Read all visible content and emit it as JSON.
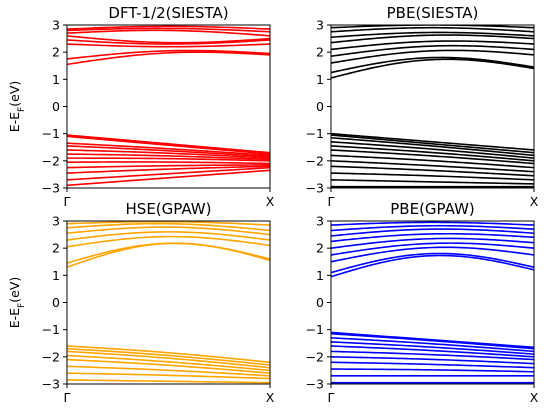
{
  "chart_data": [
    {
      "type": "line",
      "title": "DFT-1/2(SIESTA)",
      "ylabel": "E-E_F(eV)",
      "ylabel_main": "E-E",
      "ylabel_sub": "F",
      "ylabel_tail": "(eV)",
      "xticks": [
        "Γ",
        "X"
      ],
      "yticks": [
        "3",
        "2",
        "1",
        "0",
        "−1",
        "−2",
        "−3"
      ],
      "ylim": [
        -3,
        3
      ],
      "xlim": [
        0,
        1
      ],
      "color": "#ff0000",
      "conduction_bands": {
        "start": [
          1.55,
          1.75,
          2.3,
          2.45,
          2.6,
          2.7,
          2.8,
          2.85
        ],
        "end": [
          1.9,
          1.95,
          2.3,
          2.45,
          2.5,
          2.6,
          2.75,
          2.85
        ],
        "amplitude": [
          0.25,
          0.2,
          -0.1,
          -0.15,
          -0.2,
          0.15,
          0.1,
          0.1
        ]
      },
      "valence_bands": {
        "start": [
          -1.05,
          -1.1,
          -1.35,
          -1.45,
          -1.6,
          -1.75,
          -1.9,
          -2.05,
          -2.25,
          -2.45,
          -2.7,
          -2.9
        ],
        "end": [
          -1.7,
          -1.75,
          -1.8,
          -1.85,
          -1.9,
          -1.95,
          -2.0,
          -2.1,
          -2.15,
          -2.2,
          -2.25,
          -2.35
        ],
        "amplitude": [
          0.0,
          0.0,
          0.02,
          0.02,
          0.03,
          0.03,
          0.03,
          0.03,
          0.02,
          0.02,
          0.0,
          0.0
        ]
      }
    },
    {
      "type": "line",
      "title": "PBE(SIESTA)",
      "ylabel": "",
      "xticks": [
        "Γ",
        "X"
      ],
      "yticks": [
        "3",
        "2",
        "1",
        "0",
        "−1",
        "−2",
        "−3"
      ],
      "ylim": [
        -3,
        3
      ],
      "xlim": [
        0,
        1
      ],
      "color": "#000000",
      "conduction_bands": {
        "start": [
          1.05,
          1.25,
          1.6,
          1.85,
          2.1,
          2.35,
          2.55,
          2.75,
          2.9
        ],
        "end": [
          1.4,
          1.45,
          1.9,
          2.1,
          2.3,
          2.5,
          2.6,
          2.75,
          2.9
        ],
        "amplitude": [
          0.5,
          0.45,
          0.3,
          0.25,
          0.2,
          0.2,
          0.15,
          0.15,
          0.1
        ]
      },
      "valence_bands": {
        "start": [
          -1.0,
          -1.05,
          -1.15,
          -1.3,
          -1.45,
          -1.6,
          -1.8,
          -2.0,
          -2.2,
          -2.45,
          -2.7,
          -2.95
        ],
        "end": [
          -1.6,
          -1.7,
          -1.8,
          -1.9,
          -2.0,
          -2.1,
          -2.25,
          -2.4,
          -2.55,
          -2.7,
          -2.85,
          -2.95
        ],
        "amplitude": [
          0.0,
          0.0,
          0.02,
          0.03,
          0.03,
          0.03,
          0.03,
          0.02,
          0.02,
          0.02,
          0.0,
          0.0
        ]
      }
    },
    {
      "type": "line",
      "title": "HSE(GPAW)",
      "ylabel": "E-E_F(eV)",
      "ylabel_main": "E-E",
      "ylabel_sub": "F",
      "ylabel_tail": "(eV)",
      "xticks": [
        "Γ",
        "X"
      ],
      "yticks": [
        "3",
        "2",
        "1",
        "0",
        "−1",
        "−2",
        "−3"
      ],
      "ylim": [
        -3,
        3
      ],
      "xlim": [
        0,
        1
      ],
      "color": "#ffa500",
      "conduction_bands": {
        "start": [
          1.3,
          1.45,
          2.05,
          2.3,
          2.55,
          2.75,
          2.9
        ],
        "end": [
          1.55,
          1.6,
          2.1,
          2.3,
          2.5,
          2.65,
          2.85
        ],
        "amplitude": [
          0.75,
          0.65,
          0.35,
          0.3,
          0.25,
          0.2,
          0.1
        ]
      },
      "valence_bands": {
        "start": [
          -1.6,
          -1.7,
          -1.8,
          -1.95,
          -2.1,
          -2.35,
          -2.6,
          -2.85
        ],
        "end": [
          -2.2,
          -2.3,
          -2.4,
          -2.5,
          -2.6,
          -2.7,
          -2.8,
          -2.95
        ],
        "amplitude": [
          0.05,
          0.05,
          0.05,
          0.04,
          0.04,
          0.03,
          0.02,
          0.0
        ]
      }
    },
    {
      "type": "line",
      "title": "PBE(GPAW)",
      "ylabel": "",
      "xticks": [
        "Γ",
        "X"
      ],
      "yticks": [
        "3",
        "2",
        "1",
        "0",
        "−1",
        "−2",
        "−3"
      ],
      "ylim": [
        -3,
        3
      ],
      "xlim": [
        0,
        1
      ],
      "color": "#0000ff",
      "conduction_bands": {
        "start": [
          0.95,
          1.1,
          1.5,
          1.75,
          2.0,
          2.25,
          2.45,
          2.65,
          2.85
        ],
        "end": [
          1.2,
          1.3,
          1.75,
          2.0,
          2.2,
          2.4,
          2.55,
          2.7,
          2.85
        ],
        "amplitude": [
          0.65,
          0.6,
          0.4,
          0.3,
          0.25,
          0.2,
          0.2,
          0.15,
          0.1
        ]
      },
      "valence_bands": {
        "start": [
          -1.1,
          -1.15,
          -1.3,
          -1.45,
          -1.6,
          -1.8,
          -2.0,
          -2.2,
          -2.45,
          -2.7,
          -2.95
        ],
        "end": [
          -1.65,
          -1.7,
          -1.8,
          -1.9,
          -2.0,
          -2.1,
          -2.25,
          -2.4,
          -2.55,
          -2.7,
          -2.95
        ],
        "amplitude": [
          0.0,
          0.02,
          0.03,
          0.03,
          0.03,
          0.03,
          0.03,
          0.02,
          0.02,
          0.0,
          0.0
        ]
      }
    }
  ]
}
